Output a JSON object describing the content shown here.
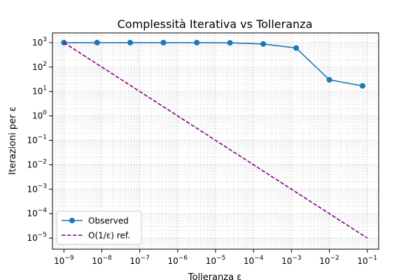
{
  "chart_data": {
    "type": "line",
    "title": "Complessità Iterativa vs Tolleranza",
    "xlabel": "Tolleranza ε",
    "ylabel": "Iterazioni per ε",
    "x_scale": "log",
    "y_scale": "log",
    "xlim": [
      5e-10,
      0.2
    ],
    "ylim": [
      3.5e-06,
      2500
    ],
    "x_ticks": [
      {
        "value": 1e-09,
        "base": "10",
        "exp": "−9"
      },
      {
        "value": 1e-08,
        "base": "10",
        "exp": "−8"
      },
      {
        "value": 1e-07,
        "base": "10",
        "exp": "−7"
      },
      {
        "value": 1e-06,
        "base": "10",
        "exp": "−6"
      },
      {
        "value": 1e-05,
        "base": "10",
        "exp": "−5"
      },
      {
        "value": 0.0001,
        "base": "10",
        "exp": "−4"
      },
      {
        "value": 0.001,
        "base": "10",
        "exp": "−3"
      },
      {
        "value": 0.01,
        "base": "10",
        "exp": "−2"
      },
      {
        "value": 0.1,
        "base": "10",
        "exp": "−1"
      }
    ],
    "y_ticks": [
      {
        "value": 1e-05,
        "base": "10",
        "exp": "−5"
      },
      {
        "value": 0.0001,
        "base": "10",
        "exp": "−4"
      },
      {
        "value": 0.001,
        "base": "10",
        "exp": "−3"
      },
      {
        "value": 0.01,
        "base": "10",
        "exp": "−2"
      },
      {
        "value": 0.1,
        "base": "10",
        "exp": "−1"
      },
      {
        "value": 1,
        "base": "10",
        "exp": "0"
      },
      {
        "value": 10,
        "base": "10",
        "exp": "1"
      },
      {
        "value": 100,
        "base": "10",
        "exp": "2"
      },
      {
        "value": 1000,
        "base": "10",
        "exp": "3"
      }
    ],
    "grid": true,
    "legend_position": "lower-left",
    "series": [
      {
        "name": "Observed",
        "color": "#1f77b4",
        "line_style": "solid",
        "marker": "circle",
        "x": [
          1e-09,
          7.5e-09,
          5.6e-08,
          4.2e-07,
          3.2e-06,
          2.4e-05,
          0.00018,
          0.00133,
          0.01,
          0.075
        ],
        "y": [
          1000,
          1000,
          1000,
          1000,
          1000,
          980,
          880,
          600,
          30,
          17
        ]
      },
      {
        "name": "O(1/ε) ref.",
        "color": "#800080",
        "line_style": "dashed",
        "marker": "none",
        "x": [
          1e-09,
          0.1
        ],
        "y": [
          1000,
          1e-05
        ]
      }
    ]
  }
}
